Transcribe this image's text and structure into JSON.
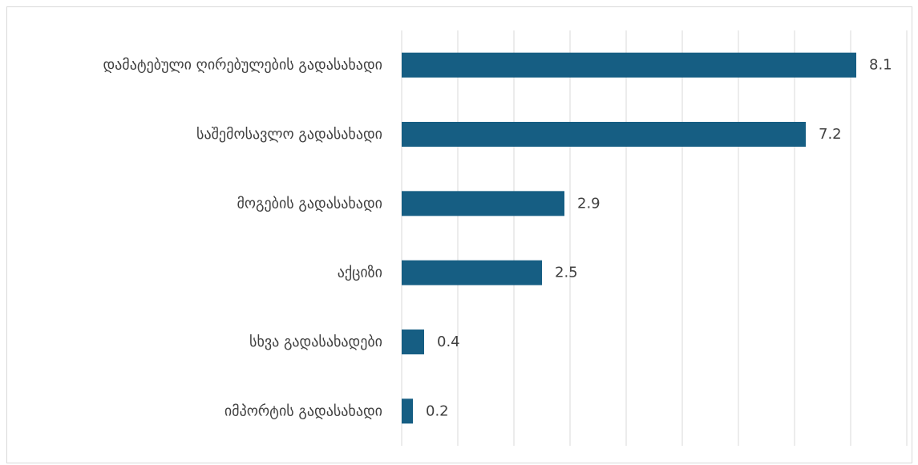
{
  "chart_data": {
    "type": "bar",
    "orientation": "horizontal",
    "categories": [
      "დამატებული ღირებულების გადასახადი",
      "საშემოსავლო გადასახადი",
      "მოგების გადასახადი",
      "აქციზი",
      "სხვა გადასახადები",
      "იმპორტის გადასახადი"
    ],
    "values": [
      8.1,
      7.2,
      2.9,
      2.5,
      0.4,
      0.2
    ],
    "data_labels": [
      "8.1",
      "7.2",
      "2.9",
      "2.5",
      "0.4",
      "0.2"
    ],
    "xlim": [
      0,
      9
    ],
    "grid": true,
    "legend": "none",
    "bar_color": "#165e83",
    "grid_color": "#d9d9d9",
    "text_color": "#404040"
  }
}
